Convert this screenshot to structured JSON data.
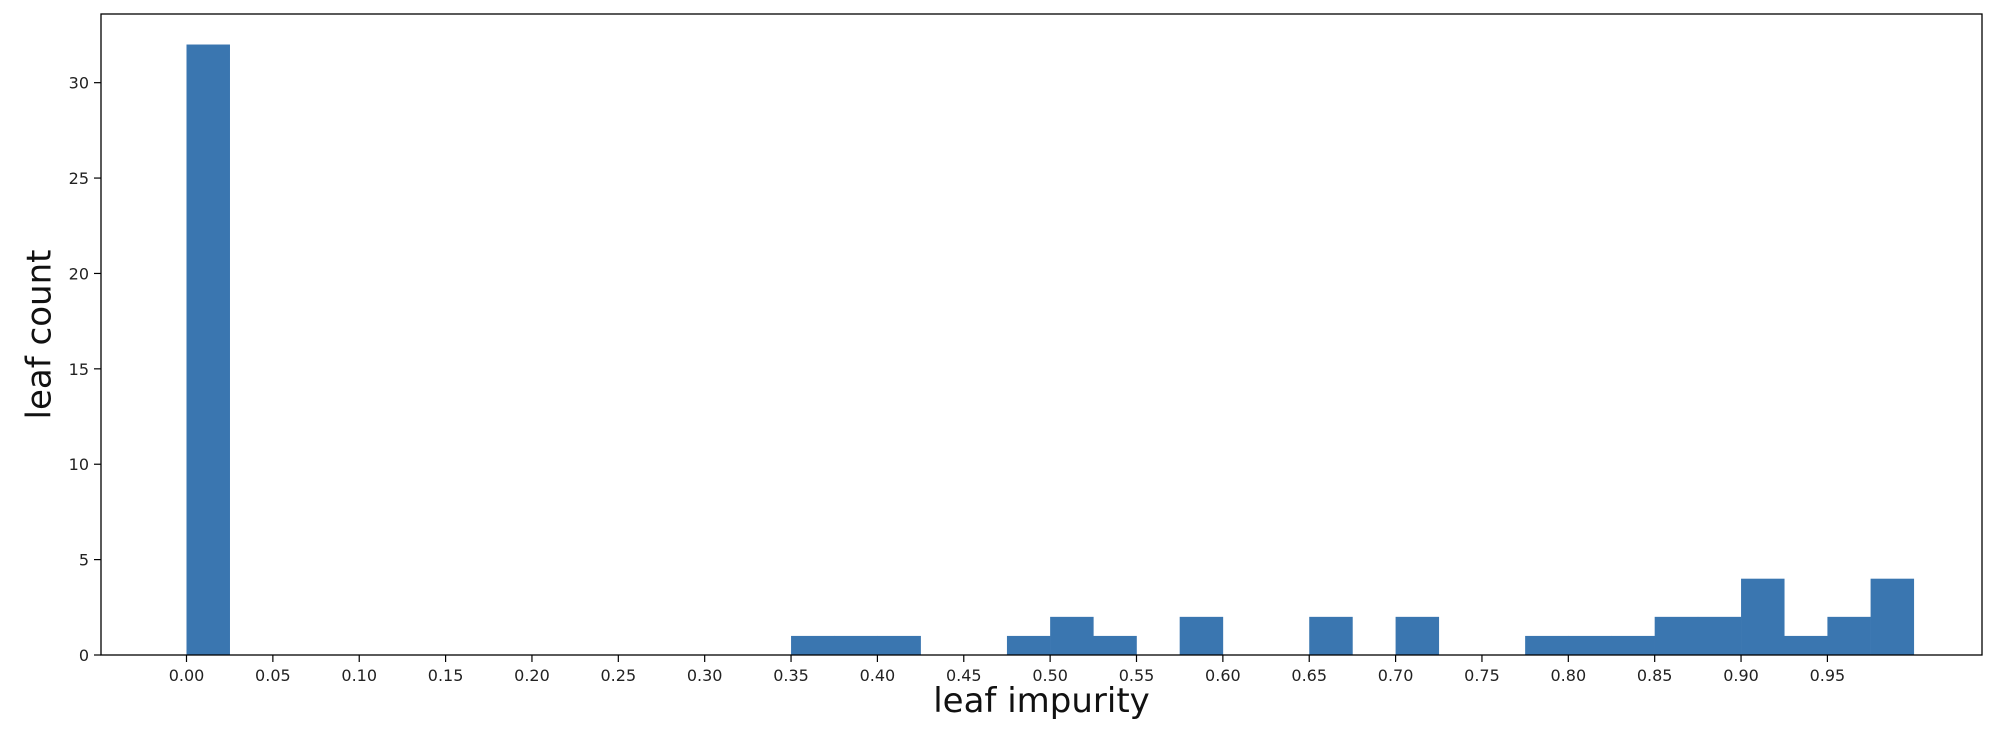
{
  "chart_data": {
    "type": "bar",
    "title": "",
    "xlabel": "leaf impurity",
    "ylabel": "leaf count",
    "bar_color": "#3a76b0",
    "xlim": [
      -0.0495,
      1.0395
    ],
    "ylim": [
      0,
      33.6
    ],
    "bin_width": 0.025,
    "bins": [
      {
        "x0": 0.0,
        "value": 32
      },
      {
        "x0": 0.35,
        "value": 1
      },
      {
        "x0": 0.375,
        "value": 1
      },
      {
        "x0": 0.4,
        "value": 1
      },
      {
        "x0": 0.475,
        "value": 1
      },
      {
        "x0": 0.5,
        "value": 2
      },
      {
        "x0": 0.525,
        "value": 1
      },
      {
        "x0": 0.575,
        "value": 2
      },
      {
        "x0": 0.65,
        "value": 2
      },
      {
        "x0": 0.7,
        "value": 2
      },
      {
        "x0": 0.775,
        "value": 1
      },
      {
        "x0": 0.8,
        "value": 1
      },
      {
        "x0": 0.825,
        "value": 1
      },
      {
        "x0": 0.85,
        "value": 2
      },
      {
        "x0": 0.875,
        "value": 2
      },
      {
        "x0": 0.9,
        "value": 4
      },
      {
        "x0": 0.925,
        "value": 1
      },
      {
        "x0": 0.95,
        "value": 2
      },
      {
        "x0": 0.975,
        "value": 4
      }
    ],
    "xticks": [
      {
        "value": 0.0,
        "label": "0.00"
      },
      {
        "value": 0.05,
        "label": "0.05"
      },
      {
        "value": 0.1,
        "label": "0.10"
      },
      {
        "value": 0.15,
        "label": "0.15"
      },
      {
        "value": 0.2,
        "label": "0.20"
      },
      {
        "value": 0.25,
        "label": "0.25"
      },
      {
        "value": 0.3,
        "label": "0.30"
      },
      {
        "value": 0.35,
        "label": "0.35"
      },
      {
        "value": 0.4,
        "label": "0.40"
      },
      {
        "value": 0.45,
        "label": "0.45"
      },
      {
        "value": 0.5,
        "label": "0.50"
      },
      {
        "value": 0.55,
        "label": "0.55"
      },
      {
        "value": 0.6,
        "label": "0.60"
      },
      {
        "value": 0.65,
        "label": "0.65"
      },
      {
        "value": 0.7,
        "label": "0.70"
      },
      {
        "value": 0.75,
        "label": "0.75"
      },
      {
        "value": 0.8,
        "label": "0.80"
      },
      {
        "value": 0.85,
        "label": "0.85"
      },
      {
        "value": 0.9,
        "label": "0.90"
      },
      {
        "value": 0.95,
        "label": "0.95"
      }
    ],
    "yticks": [
      {
        "value": 0,
        "label": "0"
      },
      {
        "value": 5,
        "label": "5"
      },
      {
        "value": 10,
        "label": "10"
      },
      {
        "value": 15,
        "label": "15"
      },
      {
        "value": 20,
        "label": "20"
      },
      {
        "value": 25,
        "label": "25"
      },
      {
        "value": 30,
        "label": "30"
      }
    ],
    "grid": false,
    "legend": "none"
  }
}
